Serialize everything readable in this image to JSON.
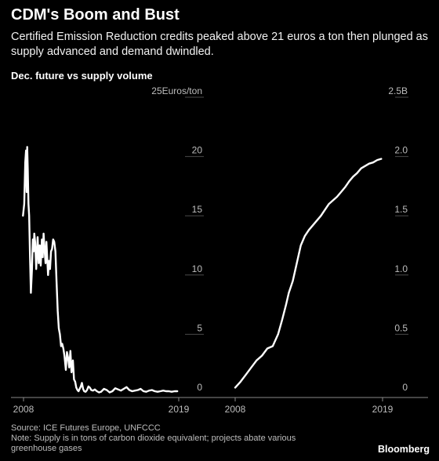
{
  "header": {
    "title": "CDM's Boom and Bust",
    "subtitle": "Certified Emission Reduction credits peaked above 21 euros a ton then plunged as supply advanced and demand dwindled.",
    "caption": "Dec. future vs supply volume"
  },
  "footer": {
    "source": "Source: ICE Futures Europe, UNFCCC",
    "note": "Note: Supply is in tons of carbon dioxide equivalent; projects abate various greenhouse gases",
    "brand": "Bloomberg"
  },
  "colors": {
    "background": "#000000",
    "line": "#ffffff"
  },
  "chart_data": [
    {
      "type": "line",
      "series_label": "Dec. future",
      "ylim": [
        0,
        25
      ],
      "yticks": [
        "25Euros/ton",
        "20",
        "15",
        "10",
        "5",
        "0"
      ],
      "xlim": [
        2008.0,
        2019.0
      ],
      "xticks": [
        "2008",
        "2019"
      ],
      "x": [
        2007.96,
        2008.05,
        2008.12,
        2008.18,
        2008.22,
        2008.26,
        2008.3,
        2008.35,
        2008.4,
        2008.46,
        2008.52,
        2008.6,
        2008.66,
        2008.72,
        2008.76,
        2008.82,
        2008.9,
        2009.0,
        2009.08,
        2009.15,
        2009.22,
        2009.3,
        2009.36,
        2009.42,
        2009.5,
        2009.56,
        2009.62,
        2009.68,
        2009.74,
        2009.8,
        2009.88,
        2009.95,
        2010.02,
        2010.1,
        2010.18,
        2010.26,
        2010.34,
        2010.42,
        2010.5,
        2010.58,
        2010.66,
        2010.74,
        2010.82,
        2010.9,
        2011.0,
        2011.08,
        2011.16,
        2011.24,
        2011.32,
        2011.4,
        2011.5,
        2011.58,
        2011.66,
        2011.74,
        2011.82,
        2011.9,
        2011.98,
        2012.06,
        2012.14,
        2012.22,
        2012.3,
        2012.4,
        2012.5,
        2012.6,
        2012.7,
        2012.8,
        2012.92,
        2013.05,
        2013.2,
        2013.35,
        2013.5,
        2013.7,
        2013.9,
        2014.1,
        2014.3,
        2014.5,
        2014.7,
        2014.9,
        2015.1,
        2015.3,
        2015.5,
        2015.7,
        2015.9,
        2016.1,
        2016.3,
        2016.5,
        2016.7,
        2016.9,
        2017.1,
        2017.3,
        2017.5,
        2017.7,
        2017.9,
        2018.1,
        2018.3,
        2018.5,
        2018.7,
        2018.9
      ],
      "y": [
        15.0,
        16.0,
        19.5,
        20.5,
        17.0,
        20.8,
        19.0,
        16.0,
        15.0,
        11.5,
        8.5,
        10.5,
        13.0,
        12.0,
        13.5,
        12.8,
        10.5,
        13.2,
        11.0,
        12.5,
        10.8,
        13.0,
        11.5,
        13.5,
        12.0,
        11.0,
        12.8,
        11.5,
        10.0,
        11.2,
        10.5,
        12.0,
        12.2,
        13.0,
        12.8,
        12.0,
        9.5,
        7.0,
        5.5,
        5.0,
        4.0,
        4.2,
        3.8,
        3.2,
        2.0,
        3.5,
        3.0,
        2.2,
        3.6,
        1.8,
        2.8,
        1.2,
        1.0,
        0.5,
        0.3,
        0.2,
        0.4,
        0.6,
        0.9,
        0.4,
        0.2,
        0.15,
        0.3,
        0.6,
        0.5,
        0.3,
        0.25,
        0.35,
        0.2,
        0.1,
        0.15,
        0.4,
        0.3,
        0.1,
        0.2,
        0.45,
        0.35,
        0.25,
        0.4,
        0.55,
        0.3,
        0.2,
        0.25,
        0.3,
        0.4,
        0.2,
        0.15,
        0.25,
        0.3,
        0.2,
        0.15,
        0.2,
        0.25,
        0.2,
        0.2,
        0.15,
        0.2,
        0.2
      ]
    },
    {
      "type": "line",
      "series_label": "Supply volume",
      "ylim": [
        0,
        2.5
      ],
      "yticks": [
        "2.5B",
        "2.0",
        "1.5",
        "1.0",
        "0.5",
        "0"
      ],
      "xlim": [
        2008.0,
        2019.0
      ],
      "xticks": [
        "2008",
        "2019"
      ],
      "x": [
        2008.0,
        2008.4,
        2008.8,
        2009.2,
        2009.6,
        2010.0,
        2010.4,
        2010.8,
        2011.2,
        2011.5,
        2011.8,
        2012.0,
        2012.3,
        2012.6,
        2012.9,
        2013.2,
        2013.5,
        2013.8,
        2014.1,
        2014.4,
        2014.7,
        2015.0,
        2015.3,
        2015.6,
        2015.9,
        2016.2,
        2016.5,
        2016.8,
        2017.1,
        2017.4,
        2017.7,
        2018.0,
        2018.3,
        2018.6,
        2018.9
      ],
      "y": [
        0.05,
        0.1,
        0.16,
        0.22,
        0.28,
        0.32,
        0.38,
        0.4,
        0.5,
        0.62,
        0.75,
        0.85,
        0.95,
        1.1,
        1.25,
        1.33,
        1.38,
        1.42,
        1.46,
        1.5,
        1.55,
        1.6,
        1.63,
        1.66,
        1.7,
        1.74,
        1.79,
        1.83,
        1.86,
        1.9,
        1.92,
        1.94,
        1.95,
        1.97,
        1.98
      ]
    }
  ]
}
